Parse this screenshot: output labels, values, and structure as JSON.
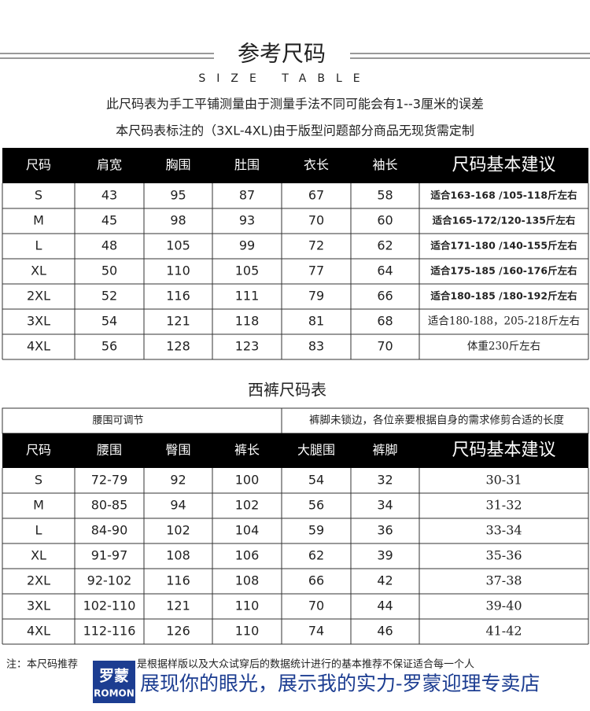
{
  "header": {
    "title": "参考尺码",
    "subtitle": "SIZE TABLE",
    "notes": [
      "此尺码表为手工平铺测量由于测量手法不同可能会有1--3厘米的误差",
      "本尺码表标注的（3XL-4XL)由于版型问题部分商品无现货需定制"
    ]
  },
  "table1": {
    "columns": [
      "尺码",
      "肩宽",
      "胸围",
      "肚围",
      "衣长",
      "袖长",
      "尺码基本建议"
    ],
    "rows": [
      [
        "S",
        "43",
        "95",
        "87",
        "67",
        "58",
        "适合163-168 /105-118斤左右"
      ],
      [
        "M",
        "45",
        "98",
        "93",
        "70",
        "60",
        "适合165-172/120-135斤左右"
      ],
      [
        "L",
        "48",
        "105",
        "99",
        "72",
        "62",
        "适合171-180 /140-155斤左右"
      ],
      [
        "XL",
        "50",
        "110",
        "105",
        "77",
        "64",
        "适合175-185 /160-176斤左右"
      ],
      [
        "2XL",
        "52",
        "116",
        "111",
        "79",
        "66",
        "适合180-185 /180-192斤左右"
      ],
      [
        "3XL",
        "54",
        "121",
        "118",
        "81",
        "68",
        "适合180-188，205-218斤左右"
      ],
      [
        "4XL",
        "56",
        "128",
        "123",
        "83",
        "70",
        "体重230斤左右"
      ]
    ]
  },
  "section_title": "西裤尺码表",
  "table2": {
    "note": [
      "腰围可调节",
      "裤脚未锁边，各位亲要根据自身的需求修剪合适的长度"
    ],
    "columns": [
      "尺码",
      "腰围",
      "臀围",
      "裤长",
      "大腿围",
      "裤脚",
      "尺码基本建议"
    ],
    "rows": [
      [
        "S",
        "72-79",
        "92",
        "100",
        "54",
        "32",
        "30-31"
      ],
      [
        "M",
        "80-85",
        "94",
        "102",
        "56",
        "34",
        "31-32"
      ],
      [
        "L",
        "84-90",
        "102",
        "104",
        "59",
        "36",
        "33-34"
      ],
      [
        "XL",
        "91-97",
        "108",
        "106",
        "62",
        "39",
        "35-36"
      ],
      [
        "2XL",
        "92-102",
        "116",
        "108",
        "66",
        "42",
        "37-38"
      ],
      [
        "3XL",
        "102-110",
        "121",
        "110",
        "70",
        "44",
        "39-40"
      ],
      [
        "4XL",
        "112-116",
        "126",
        "110",
        "74",
        "46",
        "41-42"
      ]
    ]
  },
  "footer": {
    "note_parts": [
      "注：本尺码推荐",
      "是根据样版以及大众试穿后的数据统计进行的基本推荐不保证适合每一个人"
    ],
    "logo_cn": "罗蒙",
    "logo_en": "ROMON",
    "slogan": "展现你的眼光，展示我的实力-罗蒙迎理专卖店"
  }
}
